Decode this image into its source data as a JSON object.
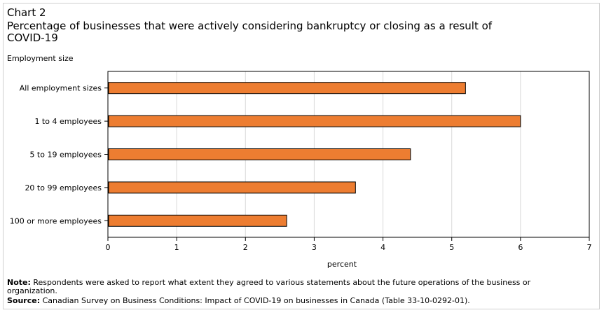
{
  "header": {
    "chart_label": "Chart 2",
    "title": "Percentage of businesses that were actively considering bankruptcy or closing as a result of COVID-19"
  },
  "chart_data": {
    "type": "bar",
    "orientation": "horizontal",
    "categories": [
      "All employment sizes",
      "1 to 4 employees",
      "5 to 19 employees",
      "20 to 99 employees",
      "100 or more employees"
    ],
    "values": [
      5.2,
      6.0,
      4.4,
      3.6,
      2.6
    ],
    "xlabel": "percent",
    "ylabel": "Employment size",
    "xlim": [
      0,
      7
    ],
    "xticks": [
      "0",
      "1",
      "2",
      "3",
      "4",
      "5",
      "6",
      "7"
    ],
    "grid": true,
    "bar_color": "#ed7d31"
  },
  "footer": {
    "note_label": "Note:",
    "note_text": " Respondents were asked to report what extent they agreed to various statements about the future operations of the business or organization.",
    "source_label": "Source:",
    "source_text": " Canadian Survey on Business Conditions: Impact of COVID-19 on businesses in Canada (Table 33-10-0292-01)."
  }
}
